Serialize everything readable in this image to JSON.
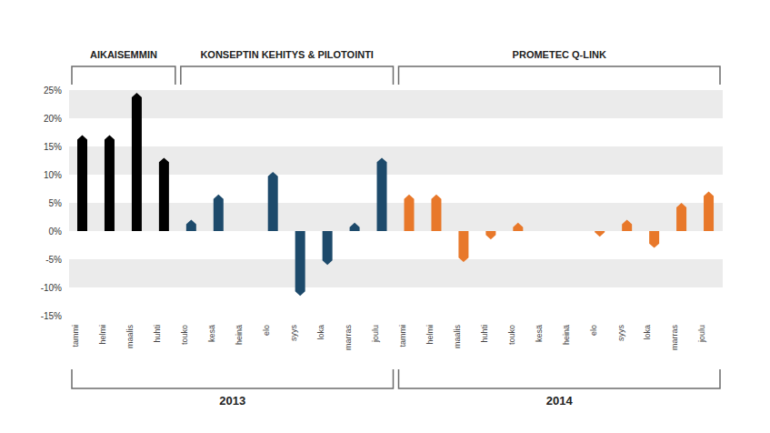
{
  "chart_data": {
    "type": "bar",
    "categories": [
      "tammi",
      "helmi",
      "maalis",
      "huhti",
      "touko",
      "kesä",
      "heinä",
      "elo",
      "syys",
      "loka",
      "marras",
      "joulu",
      "tammi",
      "helmi",
      "maalis",
      "huhti",
      "touko",
      "kesä",
      "heinä",
      "elo",
      "syys",
      "loka",
      "marras",
      "joulu"
    ],
    "years": [
      "2013",
      "2013",
      "2013",
      "2013",
      "2013",
      "2013",
      "2013",
      "2013",
      "2013",
      "2013",
      "2013",
      "2013",
      "2014",
      "2014",
      "2014",
      "2014",
      "2014",
      "2014",
      "2014",
      "2014",
      "2014",
      "2014",
      "2014",
      "2014"
    ],
    "series": [
      {
        "name": "AIKAISEMMIN",
        "color": "#000000",
        "values": [
          17,
          17,
          24.5,
          13,
          null,
          null,
          null,
          null,
          null,
          null,
          null,
          null,
          null,
          null,
          null,
          null,
          null,
          null,
          null,
          null,
          null,
          null,
          null,
          null
        ]
      },
      {
        "name": "KONSEPTIN KEHITYS & PILOTOINTI",
        "color": "#1d4a6b",
        "values": [
          null,
          null,
          null,
          null,
          2,
          6.5,
          null,
          10.5,
          -11.5,
          -6,
          1.5,
          13,
          null,
          null,
          null,
          null,
          null,
          null,
          null,
          null,
          null,
          null,
          null,
          null
        ]
      },
      {
        "name": "PROMETEC Q-LINK",
        "color": "#e8782a",
        "values": [
          null,
          null,
          null,
          null,
          null,
          null,
          null,
          null,
          null,
          null,
          null,
          null,
          6.5,
          6.5,
          -5.5,
          -1.5,
          1.5,
          null,
          null,
          -1,
          2,
          -3,
          5,
          7
        ]
      }
    ],
    "ylim": [
      -15,
      25
    ],
    "yticks": [
      {
        "value": -15,
        "label": "-15%"
      },
      {
        "value": -10,
        "label": "-10%"
      },
      {
        "value": -5,
        "label": "-5%"
      },
      {
        "value": 0,
        "label": "0%"
      },
      {
        "value": 5,
        "label": "5%"
      },
      {
        "value": 10,
        "label": "10%"
      },
      {
        "value": 15,
        "label": "15%"
      },
      {
        "value": 20,
        "label": "20%"
      },
      {
        "value": 25,
        "label": "25%"
      }
    ],
    "grid": true
  }
}
